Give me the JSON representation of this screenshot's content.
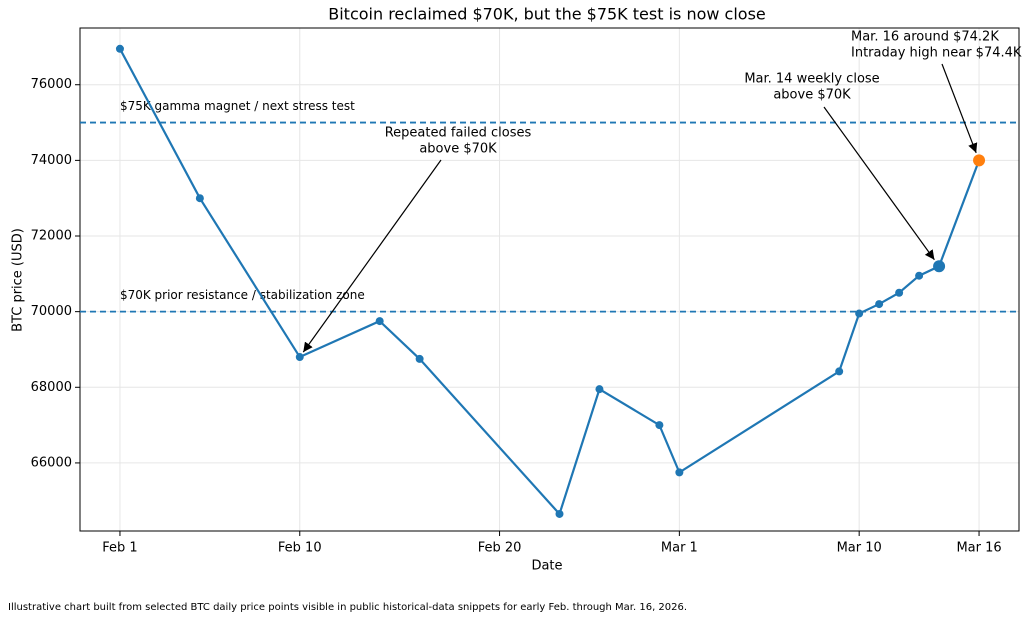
{
  "chart_data": {
    "type": "line",
    "title": "Bitcoin reclaimed $70K, but the $75K test is now close",
    "x_label": "Date",
    "y_label": "BTC price (USD)",
    "x": [
      "Feb 1",
      "Feb 5",
      "Feb 10",
      "Feb 14",
      "Feb 16",
      "Feb 23",
      "Feb 25",
      "Feb 28",
      "Mar 1",
      "Mar 9",
      "Mar 10",
      "Mar 11",
      "Mar 12",
      "Mar 13",
      "Mar 14",
      "Mar 16"
    ],
    "values": [
      76950,
      73000,
      68800,
      69750,
      68750,
      64650,
      67950,
      67000,
      65750,
      68420,
      69950,
      70200,
      70500,
      70950,
      71200,
      74000
    ],
    "color": "#1f77b4",
    "marker_colors": [
      "#1f77b4",
      "#1f77b4",
      "#1f77b4",
      "#1f77b4",
      "#1f77b4",
      "#1f77b4",
      "#1f77b4",
      "#1f77b4",
      "#1f77b4",
      "#1f77b4",
      "#1f77b4",
      "#1f77b4",
      "#1f77b4",
      "#1f77b4",
      "#1f77b4",
      "#ff7f0e"
    ],
    "marker_sizes": [
      4,
      4,
      4,
      4,
      4,
      4,
      4,
      4,
      4,
      4,
      4,
      4,
      4,
      4,
      6,
      6
    ],
    "xlim": [
      "Jan 30",
      "Mar 18"
    ],
    "xticks": [
      "Feb 1",
      "Feb 10",
      "Feb 20",
      "Mar 1",
      "Mar 10",
      "Mar 16"
    ],
    "ylim": [
      64200,
      77500
    ],
    "yticks": [
      66000,
      68000,
      70000,
      72000,
      74000,
      76000
    ],
    "grid": true,
    "hlines": [
      {
        "value": 75000,
        "label": "$75K gamma magnet / next stress test",
        "color": "#1f77b4"
      },
      {
        "value": 70000,
        "label": "$70K prior resistance / stabilization zone",
        "color": "#1f77b4"
      }
    ],
    "annotations": [
      {
        "lines": [
          "Repeated failed closes",
          "above $70K"
        ]
      },
      {
        "lines": [
          "Mar. 14 weekly close",
          "above $70K"
        ]
      },
      {
        "lines": [
          "Mar. 16 around $74.2K",
          "Intraday high near $74.4K"
        ]
      }
    ],
    "footnote": "Illustrative chart built from selected BTC daily price points visible in public historical-data snippets for early Feb. through Mar. 16, 2026."
  }
}
